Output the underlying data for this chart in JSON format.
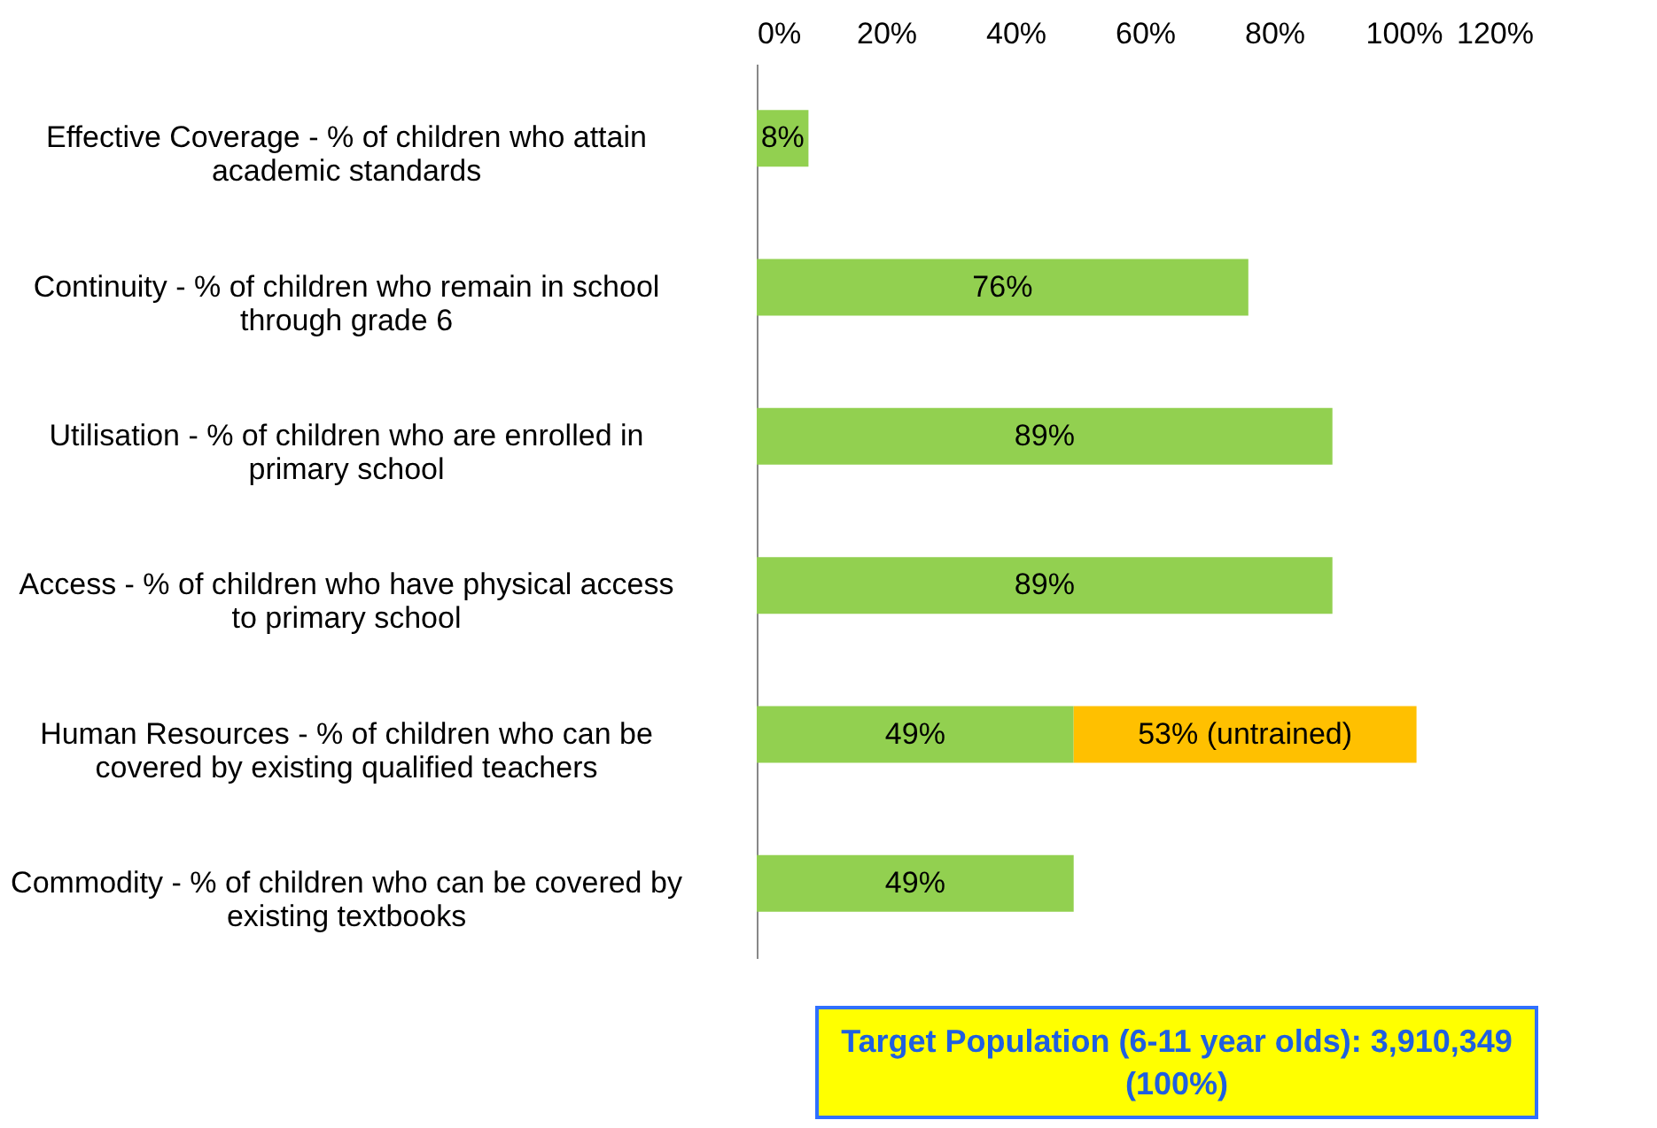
{
  "chart_data": {
    "type": "bar",
    "orientation": "horizontal",
    "stacked": true,
    "categories": [
      "Effective Coverage - % of children who attain academic standards",
      "Continuity - % of children who remain in school through grade 6",
      "Utilisation - % of children who are enrolled in primary school",
      "Access - % of children who have physical access to primary school",
      "Human Resources - % of children who can be covered by existing qualified teachers",
      "Commodity - % of children who can be covered by existing textbooks"
    ],
    "series": [
      {
        "color": "#92d050",
        "values": [
          8,
          76,
          89,
          89,
          49,
          49
        ],
        "value_labels": [
          "8%",
          "76%",
          "89%",
          "89%",
          "49%",
          "49%"
        ]
      },
      {
        "color": "#ffc000",
        "values": [
          null,
          null,
          null,
          null,
          53,
          null
        ],
        "value_labels": [
          null,
          null,
          null,
          null,
          "53% (untrained)",
          null
        ]
      }
    ],
    "xlim": [
      0,
      120
    ],
    "xticks": [
      {
        "value": 0,
        "label": "0%"
      },
      {
        "value": 20,
        "label": "20%"
      },
      {
        "value": 40,
        "label": "40%"
      },
      {
        "value": 60,
        "label": "60%"
      },
      {
        "value": 80,
        "label": "80%"
      },
      {
        "value": 100,
        "label": "100%"
      },
      {
        "value": 120,
        "label": "120%"
      }
    ],
    "grid": false,
    "annotations": [
      "Target Population (6-11 year olds): 3,910,349 (100%)"
    ]
  }
}
